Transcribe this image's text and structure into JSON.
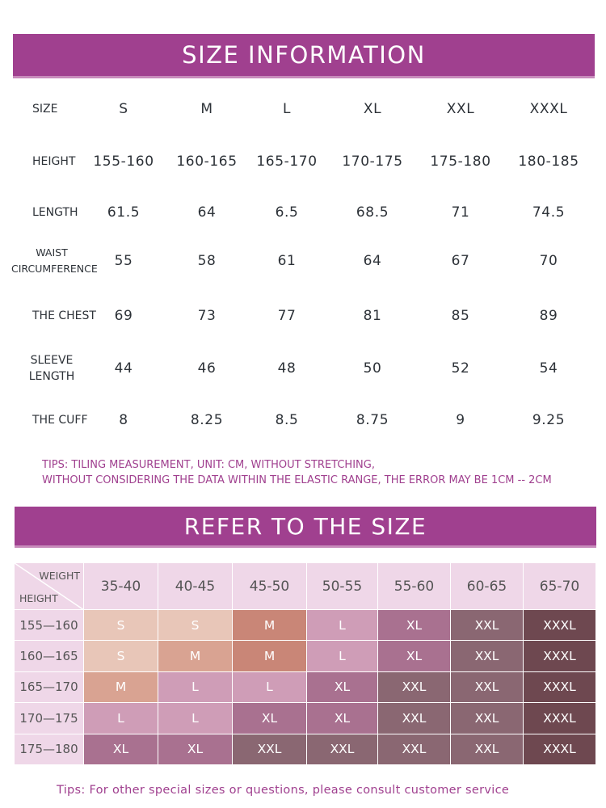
{
  "title": "SIZE INFORMATION",
  "size_table": {
    "header_label": "SIZE",
    "sizes": [
      "S",
      "M",
      "L",
      "XL",
      "XXL",
      "XXXL"
    ],
    "rows": [
      {
        "label": "HEIGHT",
        "values": [
          "155-160",
          "160-165",
          "165-170",
          "170-175",
          "175-180",
          "180-185"
        ]
      },
      {
        "label": "LENGTH",
        "values": [
          "61.5",
          "64",
          "6.5",
          "68.5",
          "71",
          "74.5"
        ]
      },
      {
        "label": "WAIST CIRCUMFERENCE",
        "label_lines": [
          "WAIST",
          "CIRCUMFERENCE"
        ],
        "values": [
          "55",
          "58",
          "61",
          "64",
          "67",
          "70"
        ]
      },
      {
        "label": "THE CHEST",
        "values": [
          "69",
          "73",
          "77",
          "81",
          "85",
          "89"
        ]
      },
      {
        "label": "SLEEVE LENGTH",
        "label_lines": [
          "SLEEVE",
          "LENGTH"
        ],
        "values": [
          "44",
          "46",
          "48",
          "50",
          "52",
          "54"
        ]
      },
      {
        "label": "THE CUFF",
        "values": [
          "8",
          "8.25",
          "8.5",
          "8.75",
          "9",
          "9.25"
        ]
      }
    ]
  },
  "tips": {
    "line1": "TIPS: TILING MEASUREMENT, UNIT: CM, WITHOUT STRETCHING,",
    "line2": "WITHOUT CONSIDERING THE DATA WITHIN THE ELASTIC RANGE, THE ERROR MAY BE 1CM -- 2CM"
  },
  "refer_title": "REFER TO THE SIZE",
  "refer_grid": {
    "corner_weight": "WEIGHT",
    "corner_height": "HEIGHT",
    "weights": [
      "35-40",
      "40-45",
      "45-50",
      "50-55",
      "55-60",
      "60-65",
      "65-70"
    ],
    "heights": [
      "155—160",
      "160—165",
      "165—170",
      "170—175",
      "175—180"
    ],
    "cells": [
      [
        "S",
        "S",
        "M",
        "L",
        "XL",
        "XXL",
        "XXXL"
      ],
      [
        "S",
        "M",
        "M",
        "L",
        "XL",
        "XXL",
        "XXXL"
      ],
      [
        "M",
        "L",
        "L",
        "XL",
        "XXL",
        "XXL",
        "XXXL"
      ],
      [
        "L",
        "L",
        "XL",
        "XL",
        "XXL",
        "XXL",
        "XXXL"
      ],
      [
        "XL",
        "XL",
        "XXL",
        "XXL",
        "XXL",
        "XXL",
        "XXXL"
      ]
    ],
    "size_colors": {
      "S": {
        "bg": "#e8c6b8",
        "fg": "#ffffff"
      },
      "M": {
        "bg": "#d9a392",
        "fg": "#ffffff"
      },
      "L": {
        "bg": "#cf9db7",
        "fg": "#ffffff"
      },
      "XL": {
        "bg": "#a97190",
        "fg": "#ffffff"
      },
      "XXL": {
        "bg": "#8a6772",
        "fg": "#ffffff"
      },
      "XXXL": {
        "bg": "#6e4850",
        "fg": "#ffffff"
      }
    },
    "grid_overrides": {
      "1_1": {
        "bg": "#d9a392"
      },
      "0_2": {
        "bg": "#c98677"
      },
      "1_2": {
        "bg": "#c98677"
      },
      "2_0": {
        "bg": "#d9a392"
      },
      "2_1": {
        "bg": "#cf9db7"
      },
      "2_2": {
        "bg": "#cf9db7"
      },
      "3_0": {
        "bg": "#cf9db7"
      },
      "3_1": {
        "bg": "#cf9db7"
      },
      "3_2": {
        "bg": "#a97190"
      },
      "4_0": {
        "bg": "#a97190"
      },
      "4_1": {
        "bg": "#a97190"
      },
      "4_2": {
        "bg": "#8a6772"
      },
      "0_3": {
        "bg": "#cf9db7"
      },
      "1_3": {
        "bg": "#cf9db7"
      },
      "2_3": {
        "bg": "#a97190"
      },
      "3_3": {
        "bg": "#a97190"
      },
      "4_3": {
        "bg": "#8a6772"
      }
    }
  },
  "footer_tip": "Tips: For other special sizes or questions, please consult customer service",
  "colors": {
    "accent": "#a0408f",
    "header_bg": "#efd7e8",
    "text": "#2d3238"
  }
}
